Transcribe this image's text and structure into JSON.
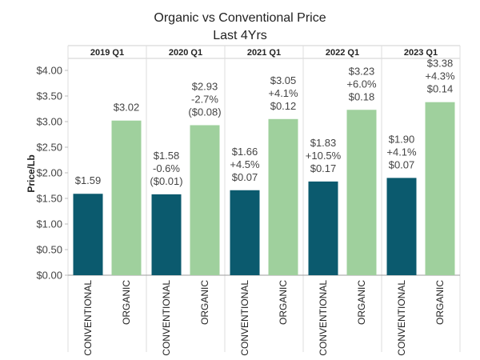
{
  "chart_data": {
    "type": "bar",
    "title_lines": [
      "Organic vs Conventional Price",
      "Last 4Yrs"
    ],
    "ylabel": "Price/Lb",
    "ylim": [
      0,
      4.0
    ],
    "yticks": [
      0,
      0.5,
      1.0,
      1.5,
      2.0,
      2.5,
      3.0,
      3.5,
      4.0
    ],
    "ytick_labels": [
      "$0.00",
      "$0.50",
      "$1.00",
      "$1.50",
      "$2.00",
      "$2.50",
      "$3.00",
      "$3.50",
      "$4.00"
    ],
    "categories": [
      "CONVENTIONAL",
      "ORGANIC"
    ],
    "colors": {
      "CONVENTIONAL": "#0b5a6e",
      "ORGANIC": "#9fd09d"
    },
    "grid": false,
    "panels": [
      {
        "label": "2019 Q1",
        "bars": [
          {
            "category": "CONVENTIONAL",
            "value": 1.59,
            "labels": [
              "$1.59"
            ]
          },
          {
            "category": "ORGANIC",
            "value": 3.02,
            "labels": [
              "$3.02"
            ]
          }
        ]
      },
      {
        "label": "2020 Q1",
        "bars": [
          {
            "category": "CONVENTIONAL",
            "value": 1.58,
            "labels": [
              "$1.58",
              "-0.6%",
              "($0.01)"
            ]
          },
          {
            "category": "ORGANIC",
            "value": 2.93,
            "labels": [
              "$2.93",
              "-2.7%",
              "($0.08)"
            ]
          }
        ]
      },
      {
        "label": "2021 Q1",
        "bars": [
          {
            "category": "CONVENTIONAL",
            "value": 1.66,
            "labels": [
              "$1.66",
              "+4.5%",
              "$0.07"
            ]
          },
          {
            "category": "ORGANIC",
            "value": 3.05,
            "labels": [
              "$3.05",
              "+4.1%",
              "$0.12"
            ]
          }
        ]
      },
      {
        "label": "2022 Q1",
        "bars": [
          {
            "category": "CONVENTIONAL",
            "value": 1.83,
            "labels": [
              "$1.83",
              "+10.5%",
              "$0.17"
            ]
          },
          {
            "category": "ORGANIC",
            "value": 3.23,
            "labels": [
              "$3.23",
              "+6.0%",
              "$0.18"
            ]
          }
        ]
      },
      {
        "label": "2023 Q1",
        "bars": [
          {
            "category": "CONVENTIONAL",
            "value": 1.9,
            "labels": [
              "$1.90",
              "+4.1%",
              "$0.07"
            ]
          },
          {
            "category": "ORGANIC",
            "value": 3.38,
            "labels": [
              "$3.38",
              "+4.3%",
              "$0.14"
            ]
          }
        ]
      }
    ]
  }
}
